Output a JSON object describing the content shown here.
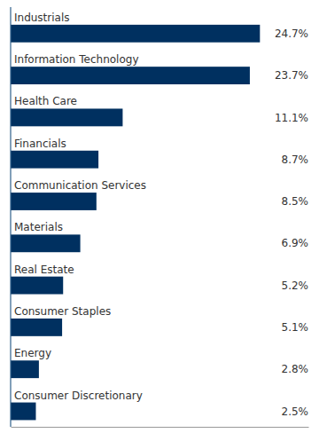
{
  "chart_data": {
    "type": "bar",
    "orientation": "horizontal",
    "categories": [
      "Industrials",
      "Information Technology",
      "Health Care",
      "Financials",
      "Communication Services",
      "Materials",
      "Real Estate",
      "Consumer Staples",
      "Energy",
      "Consumer Discretionary"
    ],
    "values": [
      24.7,
      23.7,
      11.1,
      8.7,
      8.5,
      6.9,
      5.2,
      5.1,
      2.8,
      2.5
    ],
    "value_labels": [
      "24.7%",
      "23.7%",
      "11.1%",
      "8.7%",
      "8.5%",
      "6.9%",
      "5.2%",
      "5.1%",
      "2.8%",
      "2.5%"
    ],
    "color": "#003060",
    "xlim": [
      0,
      29.5
    ],
    "data_labels": true,
    "tick_labels": false
  }
}
